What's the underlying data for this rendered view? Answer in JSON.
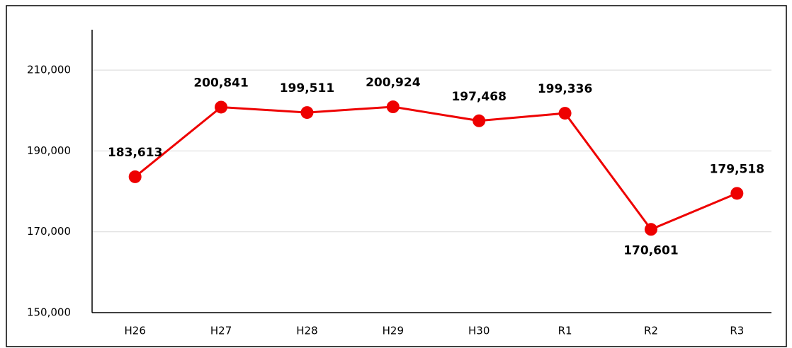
{
  "chart_data": {
    "type": "line",
    "categories": [
      "H26",
      "H27",
      "H28",
      "H29",
      "H30",
      "R1",
      "R2",
      "R3"
    ],
    "series": [
      {
        "name": null,
        "color": "#ee0000",
        "values": [
          183613,
          200841,
          199511,
          200924,
          197468,
          199336,
          170601,
          179518
        ],
        "value_labels": [
          "183,613",
          "200,841",
          "199,511",
          "200,924",
          "197,468",
          "199,336",
          "170,601",
          "179,518"
        ]
      }
    ],
    "ylim": [
      150000,
      220000
    ],
    "yticks": [
      {
        "value": 150000,
        "label": "150,000"
      },
      {
        "value": 170000,
        "label": "170,000"
      },
      {
        "value": 190000,
        "label": "190,000"
      },
      {
        "value": 210000,
        "label": "210,000"
      }
    ],
    "grid": true
  }
}
